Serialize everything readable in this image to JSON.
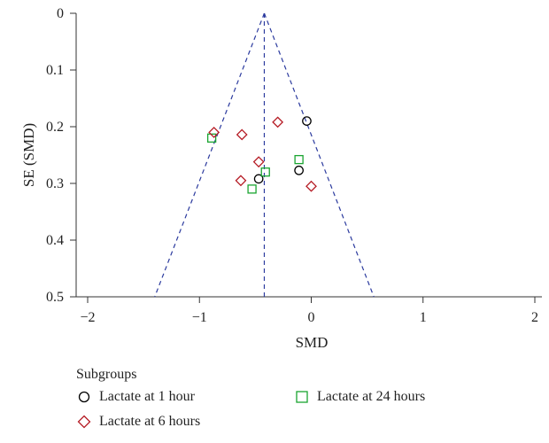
{
  "chart_data": {
    "type": "scatter",
    "title": "",
    "xlabel": "SMD",
    "ylabel": "SE (SMD)",
    "xlim": [
      -2,
      2
    ],
    "ylim": [
      0,
      0.5
    ],
    "y_inverted": true,
    "x_ticks": [
      "−2",
      "−1",
      "0",
      "1",
      "2"
    ],
    "x_tick_values": [
      -2,
      -1,
      0,
      1,
      2
    ],
    "y_ticks": [
      "0",
      "0.1",
      "0.2",
      "0.3",
      "0.4",
      "0.5"
    ],
    "y_tick_values": [
      0,
      0.1,
      0.2,
      0.3,
      0.4,
      0.5
    ],
    "pooled_estimate": -0.42,
    "funnel": {
      "apex": [
        -0.42,
        0
      ],
      "base_left": [
        -1.4,
        0.5
      ],
      "base_right": [
        0.56,
        0.5
      ],
      "color": "#2b3a9e"
    },
    "grid": false,
    "legend_title": "Subgroups",
    "legend_position": "bottom",
    "series": [
      {
        "name": "Lactate at 1 hour",
        "marker": "circle",
        "color": "#000000",
        "points": [
          [
            -0.04,
            0.19
          ],
          [
            -0.11,
            0.277
          ],
          [
            -0.47,
            0.292
          ]
        ]
      },
      {
        "name": "Lactate at 24 hours",
        "marker": "square",
        "color": "#1aa531",
        "points": [
          [
            -0.89,
            0.22
          ],
          [
            -0.11,
            0.258
          ],
          [
            -0.41,
            0.28
          ],
          [
            -0.53,
            0.31
          ]
        ]
      },
      {
        "name": "Lactate at 6 hours",
        "marker": "diamond",
        "color": "#b51b24",
        "points": [
          [
            -0.87,
            0.21
          ],
          [
            -0.62,
            0.214
          ],
          [
            -0.3,
            0.192
          ],
          [
            -0.47,
            0.262
          ],
          [
            -0.63,
            0.295
          ],
          [
            0.0,
            0.305
          ]
        ]
      }
    ]
  }
}
